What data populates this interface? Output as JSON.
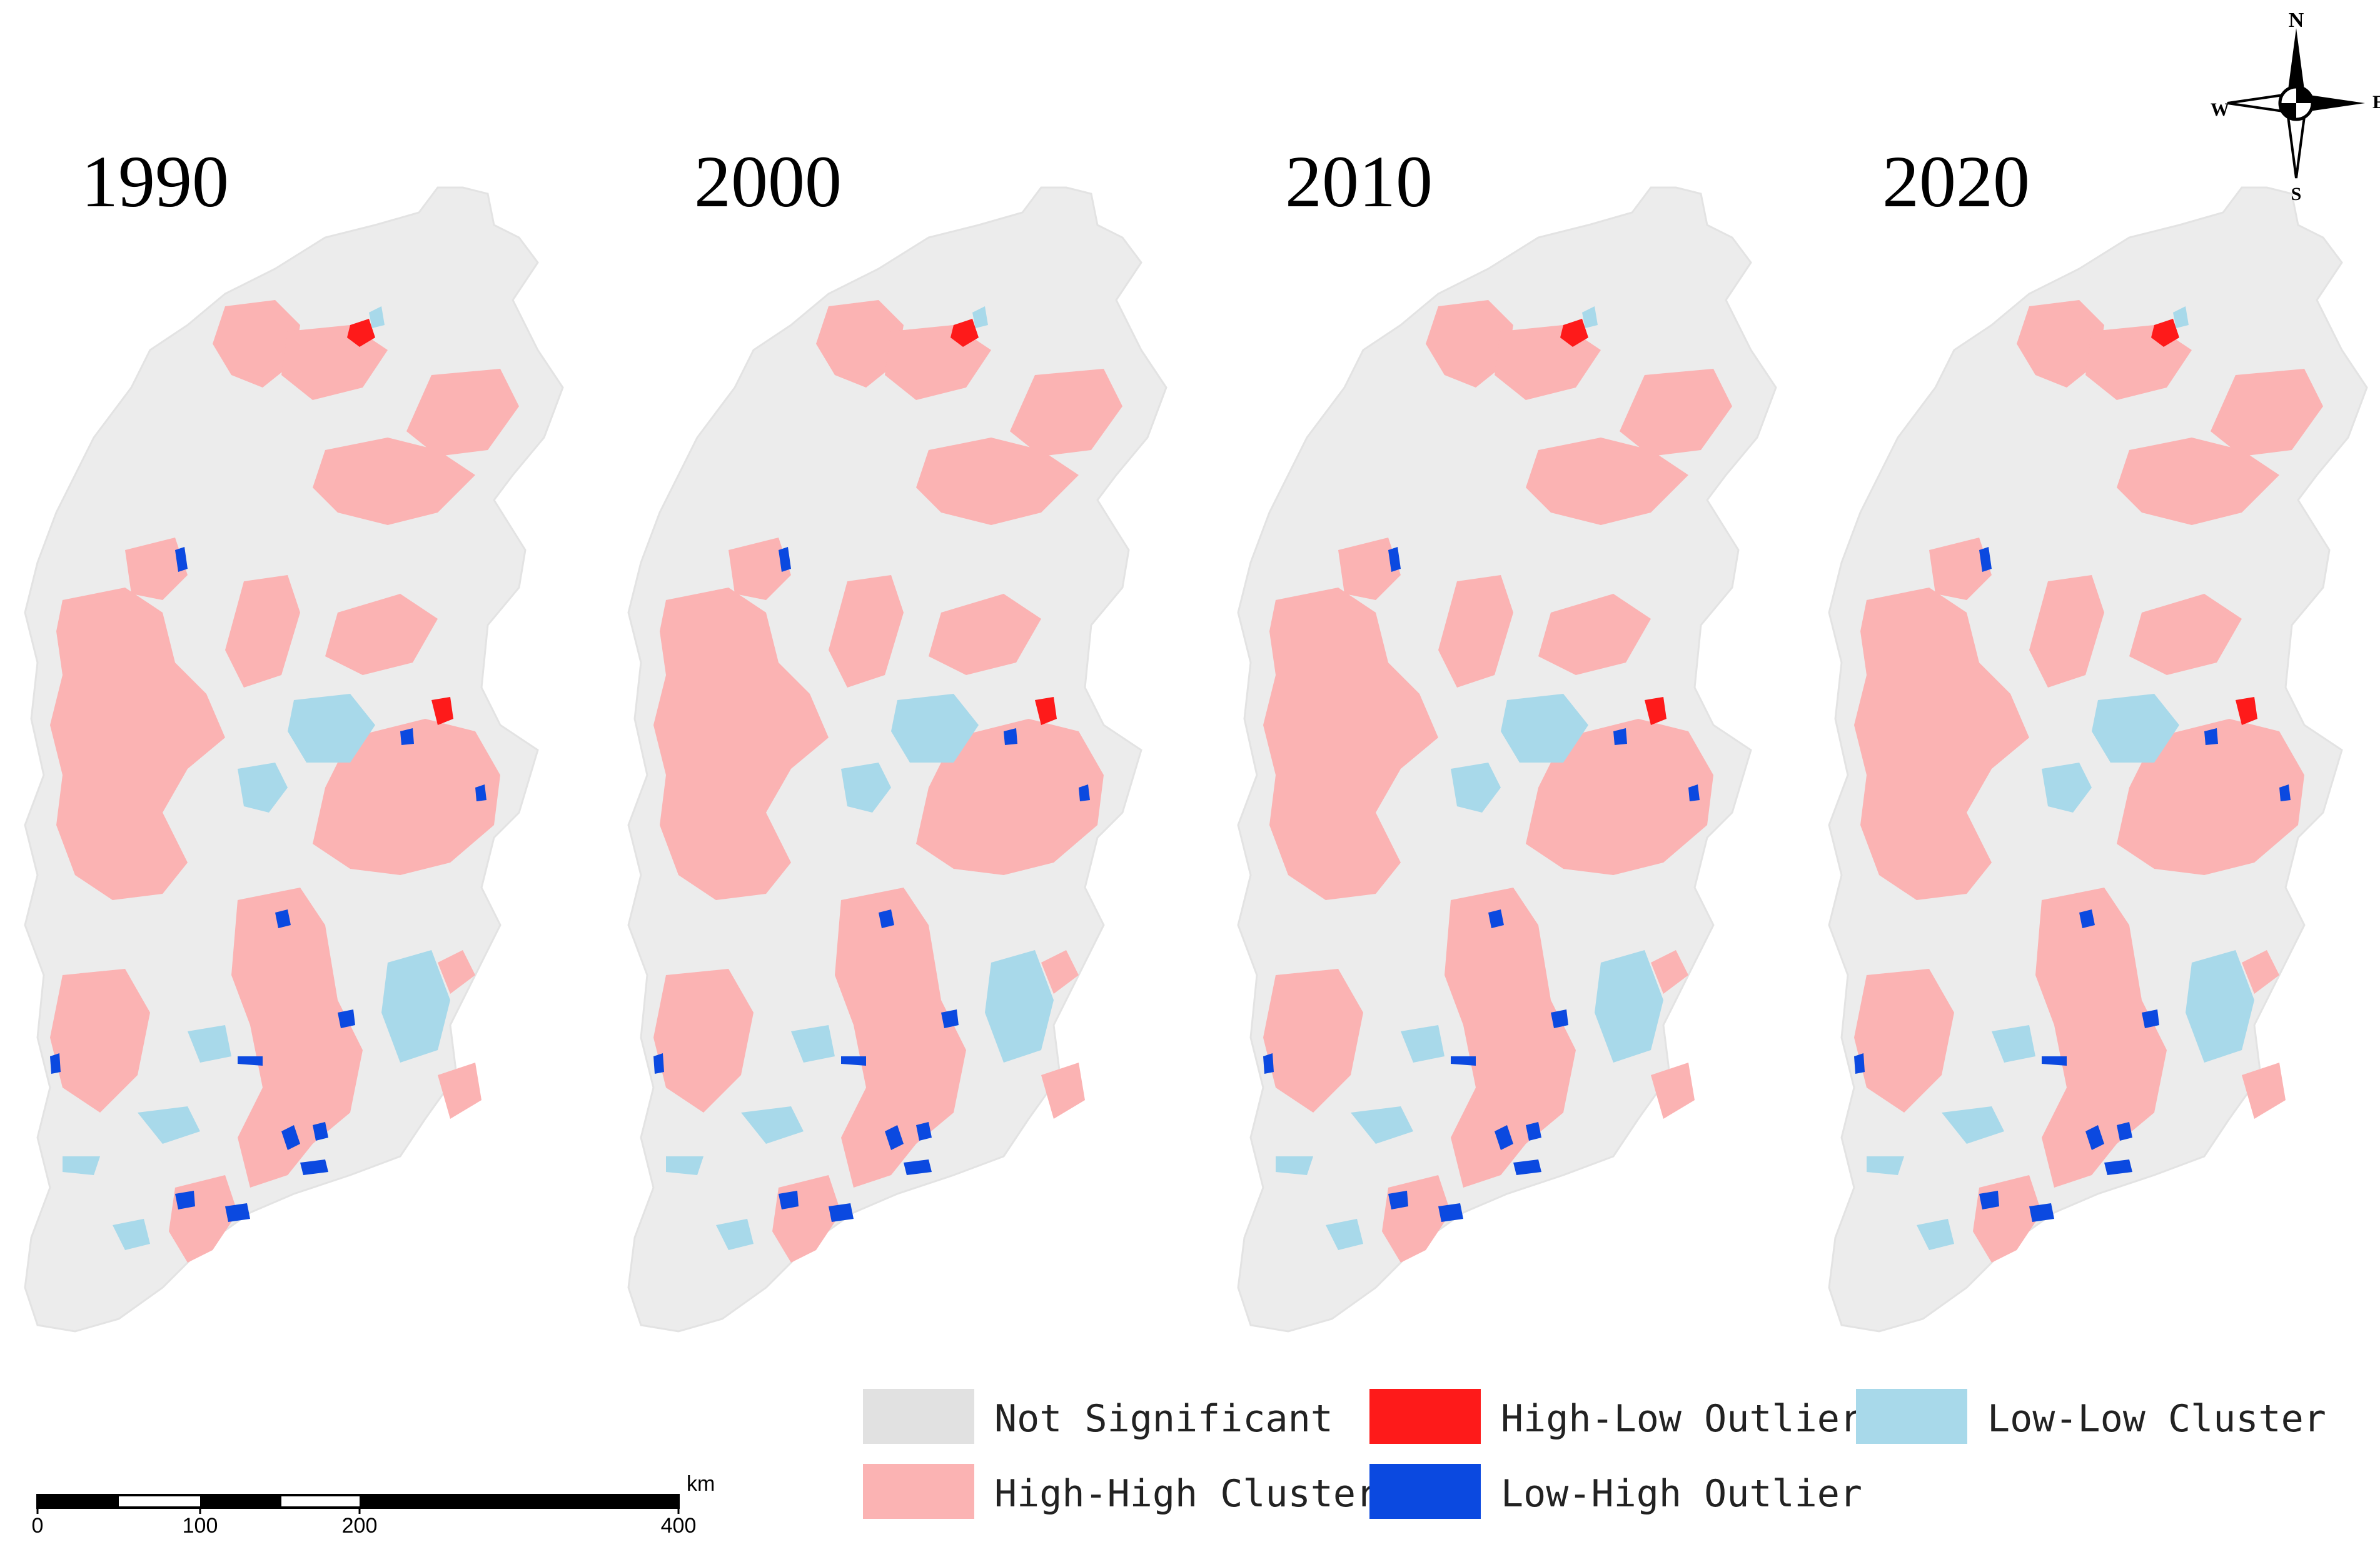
{
  "figure": {
    "panels": [
      {
        "year": "1990"
      },
      {
        "year": "2000"
      },
      {
        "year": "2010"
      },
      {
        "year": "2020"
      }
    ],
    "legend": [
      {
        "label": "Not Significant",
        "color": "#e1e1e1"
      },
      {
        "label": "High-Low Outlier",
        "color": "#fe1a1a"
      },
      {
        "label": "Low-Low Cluster",
        "color": "#a8d9ea"
      },
      {
        "label": "High-High Cluster",
        "color": "#fbb3b3"
      },
      {
        "label": "Low-High Outlier",
        "color": "#0b49e0"
      }
    ],
    "scale_bar": {
      "ticks": [
        "0",
        "100",
        "200",
        "400"
      ],
      "unit": "km"
    },
    "north_arrow": {
      "n": "N",
      "s": "S",
      "e": "E",
      "w": "W"
    },
    "colors": {
      "base": "#ececec",
      "not_significant": "#e1e1e1",
      "high_high": "#fbb3b3",
      "low_low": "#a8d9ea",
      "high_low": "#fe1a1a",
      "low_high": "#0b49e0"
    }
  }
}
